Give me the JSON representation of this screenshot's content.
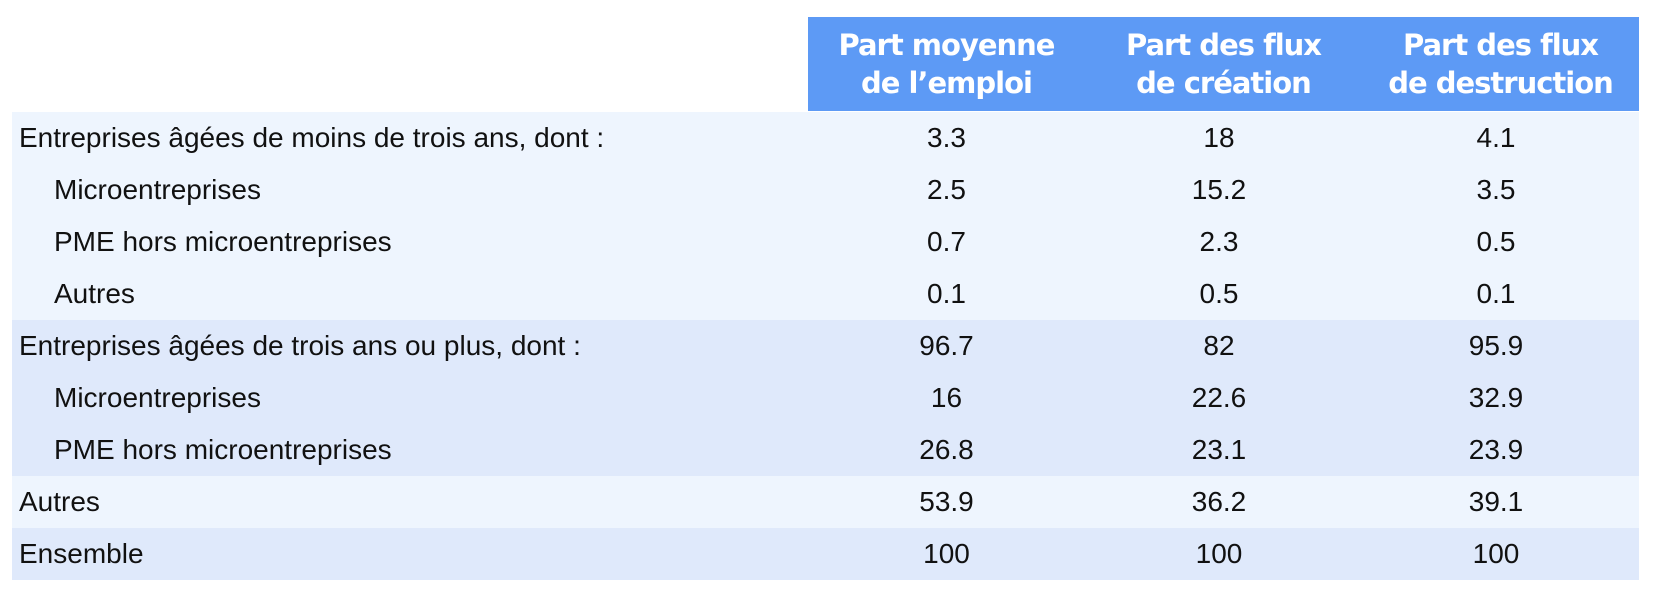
{
  "header": [
    "Part moyenne\nde l’emploi",
    "Part des flux\nde création",
    "Part des flux\nde destruction"
  ],
  "groups": [
    {
      "shade": "light",
      "rows": [
        {
          "label": "Entreprises âgées de moins de trois ans, dont :",
          "indent": false,
          "values": [
            "3.3",
            "18",
            "4.1"
          ]
        },
        {
          "label": "Microentreprises",
          "indent": true,
          "values": [
            "2.5",
            "15.2",
            "3.5"
          ]
        },
        {
          "label": "PME hors microentreprises",
          "indent": true,
          "values": [
            "0.7",
            "2.3",
            "0.5"
          ]
        },
        {
          "label": "Autres",
          "indent": true,
          "values": [
            "0.1",
            "0.5",
            "0.1"
          ]
        }
      ]
    },
    {
      "shade": "dark",
      "rows": [
        {
          "label": "Entreprises âgées de trois ans ou plus, dont :",
          "indent": false,
          "values": [
            "96.7",
            "82",
            "95.9"
          ]
        },
        {
          "label": "Microentreprises",
          "indent": true,
          "values": [
            "16",
            "22.6",
            "32.9"
          ]
        },
        {
          "label": "PME hors microentreprises",
          "indent": true,
          "values": [
            "26.8",
            "23.1",
            "23.9"
          ]
        }
      ]
    },
    {
      "shade": "light",
      "rows": [
        {
          "label": "Autres",
          "indent": false,
          "values": [
            "53.9",
            "36.2",
            "39.1"
          ]
        }
      ]
    },
    {
      "shade": "dark",
      "rows": [
        {
          "label": "Ensemble",
          "indent": false,
          "values": [
            "100",
            "100",
            "100"
          ]
        }
      ]
    }
  ],
  "colors": {
    "header": "#5d9af5",
    "light_row": "#eef5fe",
    "dark_row": "#dfe9fb"
  }
}
